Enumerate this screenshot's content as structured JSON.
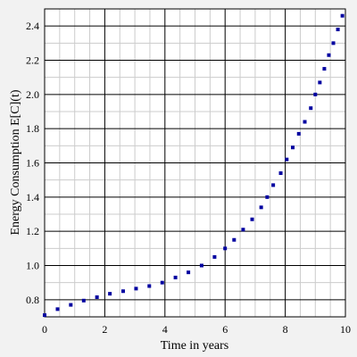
{
  "chart_data": {
    "type": "scatter",
    "xlabel": "Time in years",
    "ylabel": "Energy Consumption E[C](t)",
    "xlim": [
      0,
      10
    ],
    "ylim": [
      0.7,
      2.5
    ],
    "x_ticks": [
      0,
      2,
      4,
      6,
      8,
      10
    ],
    "y_ticks": [
      0.8,
      1.0,
      1.2,
      1.4,
      1.6,
      1.8,
      2.0,
      2.2,
      2.4
    ],
    "x_tick_labels": [
      "0",
      "2",
      "4",
      "6",
      "8",
      "10"
    ],
    "y_tick_labels": [
      "0.8",
      "1.0",
      "1.2",
      "1.4",
      "1.6",
      "1.8",
      "2.0",
      "2.2",
      "2.4"
    ],
    "grid": true,
    "marker_color": "#0000a0",
    "series": [
      {
        "x": [
          0.0,
          0.43,
          0.87,
          1.3,
          1.74,
          2.17,
          2.61,
          3.04,
          3.48,
          3.91,
          4.35,
          4.78,
          5.22,
          5.65,
          6.0,
          6.3,
          6.6,
          6.9,
          7.2,
          7.4,
          7.6,
          7.85,
          8.05,
          8.25,
          8.45,
          8.65,
          8.85,
          9.0,
          9.15,
          9.3,
          9.45,
          9.6,
          9.75,
          9.9
        ],
        "y": [
          0.71,
          0.745,
          0.77,
          0.795,
          0.815,
          0.835,
          0.85,
          0.865,
          0.88,
          0.9,
          0.93,
          0.96,
          1.0,
          1.05,
          1.1,
          1.15,
          1.21,
          1.27,
          1.34,
          1.4,
          1.47,
          1.54,
          1.62,
          1.69,
          1.77,
          1.84,
          1.92,
          2.0,
          2.07,
          2.15,
          2.23,
          2.3,
          2.38,
          2.46
        ]
      }
    ]
  }
}
